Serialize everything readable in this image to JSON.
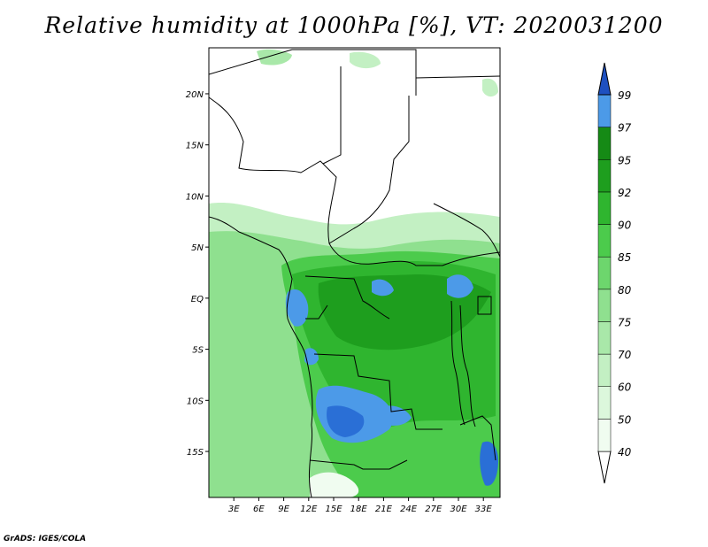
{
  "title": "Relative humidity at 1000hPa [%], VT: 2020031200",
  "credit": "GrADS: IGES/COLA",
  "map": {
    "lat_range": [
      -19.5,
      24.5
    ],
    "lon_range": [
      0,
      35
    ],
    "lat_ticks": [
      {
        "value": 20,
        "label": "20N"
      },
      {
        "value": 15,
        "label": "15N"
      },
      {
        "value": 10,
        "label": "10N"
      },
      {
        "value": 5,
        "label": "5N"
      },
      {
        "value": 0,
        "label": "EQ"
      },
      {
        "value": -5,
        "label": "5S"
      },
      {
        "value": -10,
        "label": "10S"
      },
      {
        "value": -15,
        "label": "15S"
      }
    ],
    "lon_ticks": [
      {
        "value": 3,
        "label": "3E"
      },
      {
        "value": 6,
        "label": "6E"
      },
      {
        "value": 9,
        "label": "9E"
      },
      {
        "value": 12,
        "label": "12E"
      },
      {
        "value": 15,
        "label": "15E"
      },
      {
        "value": 18,
        "label": "18E"
      },
      {
        "value": 21,
        "label": "21E"
      },
      {
        "value": 24,
        "label": "24E"
      },
      {
        "value": 27,
        "label": "27E"
      },
      {
        "value": 30,
        "label": "30E"
      },
      {
        "value": 33,
        "label": "33E"
      }
    ]
  },
  "legend": {
    "levels": [
      {
        "label": "40",
        "color": "#f0fcf0"
      },
      {
        "label": "50",
        "color": "#dcf7dc"
      },
      {
        "label": "60",
        "color": "#c3f0c3"
      },
      {
        "label": "70",
        "color": "#a9e8a9"
      },
      {
        "label": "75",
        "color": "#8fe08f"
      },
      {
        "label": "80",
        "color": "#6dd66d"
      },
      {
        "label": "85",
        "color": "#4ccb4c"
      },
      {
        "label": "90",
        "color": "#2fb52f"
      },
      {
        "label": "92",
        "color": "#1e9e1e"
      },
      {
        "label": "95",
        "color": "#158a15"
      },
      {
        "label": "97",
        "color": "#4c9ae8"
      },
      {
        "label": "99",
        "color": "#2a6fd6"
      }
    ],
    "bottom_color": "#ffffff",
    "top_color": "#1e50c0"
  }
}
